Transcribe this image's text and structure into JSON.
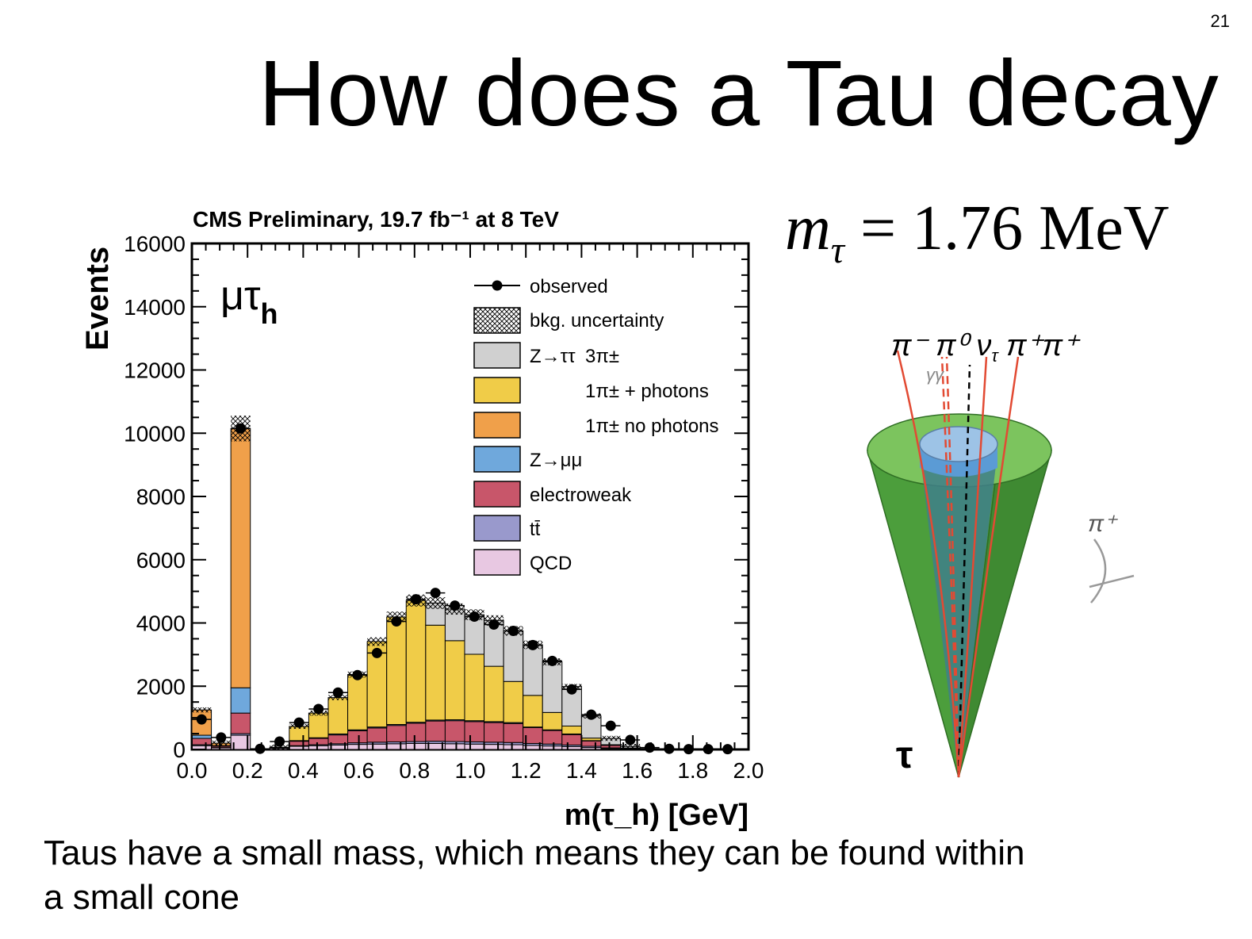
{
  "slide": {
    "number": "21",
    "title": "How does a Tau decay",
    "formula": {
      "symbol": "m",
      "subscript": "τ",
      "rest": " = 1.76 MeV"
    },
    "caption": "Taus have a small mass, which means they can be found within a small cone"
  },
  "chart_data": {
    "type": "bar",
    "stacked": true,
    "title": "CMS Preliminary, 19.7 fb⁻¹ at 8 TeV",
    "channel_label": "μτ",
    "channel_sub": "h",
    "xlabel": "m(τ_h) [GeV]",
    "ylabel": "Events",
    "xlim": [
      0,
      2.0
    ],
    "ylim": [
      0,
      16000
    ],
    "xticks": [
      "0.0",
      "0.2",
      "0.4",
      "0.6",
      "0.8",
      "1.0",
      "1.2",
      "1.4",
      "1.6",
      "1.8",
      "2.0"
    ],
    "yticks": [
      "0",
      "2000",
      "4000",
      "6000",
      "8000",
      "10000",
      "12000",
      "14000",
      "16000"
    ],
    "bin_width": 0.07,
    "bin_starts": [
      0.0,
      0.07,
      0.14,
      0.21,
      0.28,
      0.35,
      0.42,
      0.49,
      0.56,
      0.63,
      0.7,
      0.77,
      0.84,
      0.91,
      0.98,
      1.05,
      1.12,
      1.19,
      1.26,
      1.33,
      1.4,
      1.47,
      1.54,
      1.61,
      1.68,
      1.75,
      1.82,
      1.89
    ],
    "series": [
      {
        "name": "QCD",
        "color": "#e8c8e2",
        "values": [
          120,
          50,
          450,
          0,
          40,
          100,
          120,
          140,
          160,
          170,
          180,
          190,
          190,
          180,
          170,
          160,
          150,
          130,
          110,
          90,
          60,
          30,
          10,
          0,
          0,
          0,
          0,
          0
        ]
      },
      {
        "name": "tt̄",
        "color": "#9999cc",
        "values": [
          30,
          10,
          50,
          0,
          5,
          20,
          30,
          40,
          50,
          60,
          60,
          60,
          70,
          70,
          70,
          70,
          70,
          60,
          60,
          50,
          40,
          20,
          10,
          0,
          0,
          0,
          0,
          0
        ]
      },
      {
        "name": "electroweak",
        "color": "#c8566a",
        "values": [
          200,
          40,
          650,
          0,
          20,
          140,
          200,
          280,
          380,
          450,
          520,
          580,
          640,
          660,
          640,
          620,
          600,
          500,
          430,
          330,
          170,
          80,
          20,
          0,
          0,
          0,
          0,
          0
        ]
      },
      {
        "name": "Z→μμ",
        "color": "#6fa8dc",
        "values": [
          100,
          20,
          800,
          0,
          5,
          20,
          20,
          30,
          30,
          30,
          30,
          30,
          30,
          30,
          30,
          30,
          30,
          20,
          20,
          20,
          10,
          10,
          5,
          0,
          0,
          0,
          0,
          0
        ]
      },
      {
        "name": "1π± no photons",
        "color": "#f0a04a",
        "values": [
          800,
          80,
          8200,
          0,
          0,
          0,
          0,
          0,
          0,
          0,
          0,
          0,
          0,
          0,
          0,
          0,
          0,
          0,
          0,
          0,
          0,
          0,
          0,
          0,
          0,
          0,
          0,
          0
        ]
      },
      {
        "name": "1π± + photons",
        "color": "#f0cc48",
        "values": [
          0,
          0,
          0,
          0,
          0,
          450,
          780,
          1150,
          1750,
          2700,
          3400,
          3850,
          3000,
          2500,
          2100,
          1750,
          1300,
          1000,
          550,
          250,
          80,
          10,
          0,
          0,
          0,
          0,
          0,
          0
        ]
      },
      {
        "name": "Z→ττ 3π±",
        "color": "#d0d0d0",
        "values": [
          0,
          0,
          0,
          0,
          0,
          0,
          0,
          0,
          0,
          0,
          0,
          0,
          700,
          1000,
          1250,
          1450,
          1600,
          1600,
          1600,
          1250,
          700,
          200,
          50,
          0,
          0,
          0,
          0,
          0
        ]
      }
    ],
    "observed": {
      "name": "observed",
      "x": [
        0.035,
        0.105,
        0.175,
        0.245,
        0.315,
        0.385,
        0.455,
        0.525,
        0.595,
        0.665,
        0.735,
        0.805,
        0.875,
        0.945,
        1.015,
        1.085,
        1.155,
        1.225,
        1.295,
        1.365,
        1.435,
        1.505,
        1.575,
        1.645,
        1.715,
        1.785,
        1.855,
        1.925
      ],
      "y": [
        950,
        380,
        10150,
        20,
        250,
        850,
        1280,
        1800,
        2350,
        3050,
        4050,
        4750,
        4950,
        4550,
        4200,
        3950,
        3750,
        3300,
        2800,
        1900,
        1100,
        750,
        300,
        60,
        20,
        10,
        10,
        10
      ]
    },
    "legend_extra": "bkg. uncertainty",
    "legend_group": "Z→ττ",
    "legend_placement": "top-right"
  }
}
